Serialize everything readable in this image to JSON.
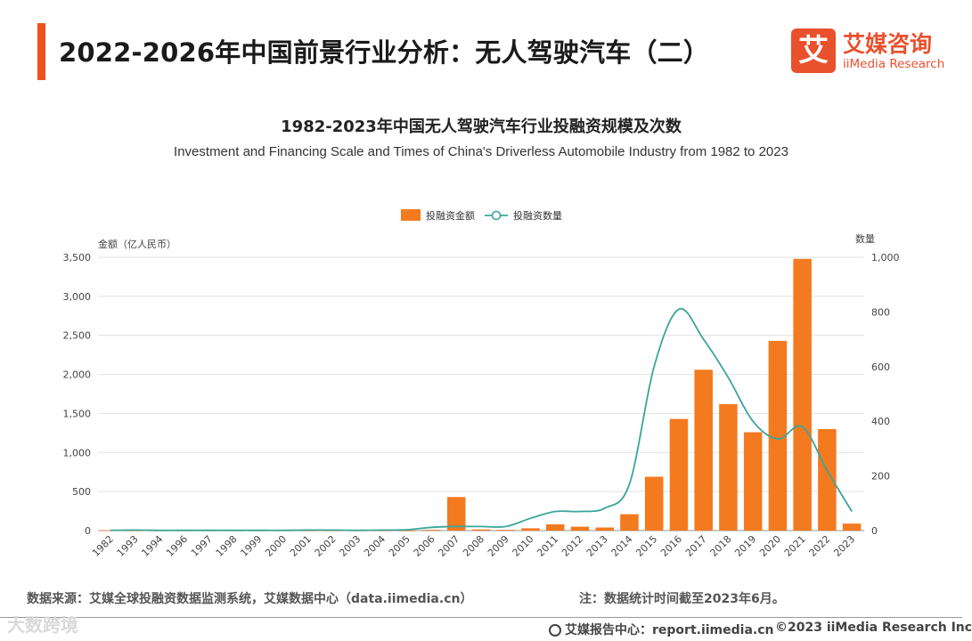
{
  "header": {
    "title": "2022-2026年中国前景行业分析：无人驾驶汽车（二）",
    "logo_mark": "艾",
    "logo_cn": "艾媒咨询",
    "logo_en": "iiMedia Research",
    "accent_color": "#f0501e"
  },
  "chart_data": {
    "type": "bar+line",
    "title": "1982-2023年中国无人驾驶汽车行业投融资规模及次数",
    "subtitle": "Investment and Financing Scale and Times of China's Driverless Automobile Industry from 1982 to 2023",
    "categories": [
      "1982",
      "1993",
      "1994",
      "1996",
      "1997",
      "1998",
      "1999",
      "2000",
      "2001",
      "2002",
      "2003",
      "2004",
      "2005",
      "2006",
      "2007",
      "2008",
      "2009",
      "2010",
      "2011",
      "2012",
      "2013",
      "2014",
      "2015",
      "2016",
      "2017",
      "2018",
      "2019",
      "2020",
      "2021",
      "2022",
      "2023"
    ],
    "series": [
      {
        "name": "投融资金额",
        "type": "bar",
        "axis": "left",
        "color": "#f47a20",
        "values": [
          5,
          2,
          2,
          2,
          2,
          2,
          2,
          2,
          2,
          2,
          2,
          2,
          2,
          10,
          430,
          15,
          10,
          30,
          80,
          50,
          40,
          210,
          690,
          1430,
          2060,
          1620,
          1260,
          2430,
          3480,
          1300,
          90
        ]
      },
      {
        "name": "投融资数量",
        "type": "line",
        "axis": "right",
        "color": "#3aa69b",
        "values": [
          1,
          2,
          1,
          1,
          1,
          1,
          1,
          1,
          2,
          2,
          1,
          2,
          3,
          12,
          15,
          15,
          15,
          45,
          70,
          70,
          82,
          170,
          600,
          810,
          700,
          560,
          400,
          335,
          380,
          220,
          70
        ]
      }
    ],
    "ylabel_left": "金额（亿人民币）",
    "ylabel_right": "数量",
    "ylim_left": [
      0,
      3500
    ],
    "ylim_right": [
      0,
      1000
    ],
    "yticks_left": [
      "0",
      "500",
      "1,000",
      "1,500",
      "2,000",
      "2,500",
      "3,000",
      "3,500"
    ],
    "yticks_right": [
      "0",
      "200",
      "400",
      "600",
      "800",
      "1,000"
    ],
    "legend": [
      "投融资金额",
      "投融资数量"
    ],
    "legend_position": "top-center",
    "grid": true
  },
  "footer": {
    "source": "数据来源：艾媒全球投融资数据监测系统，艾媒数据中心（data.iimedia.cn）",
    "note": "注：数据统计时间截至2023年6月。",
    "report": "艾媒报告中心：report.iimedia.cn",
    "copyright": "©2023  iiMedia Research  Inc",
    "watermark": "大数跨境"
  }
}
